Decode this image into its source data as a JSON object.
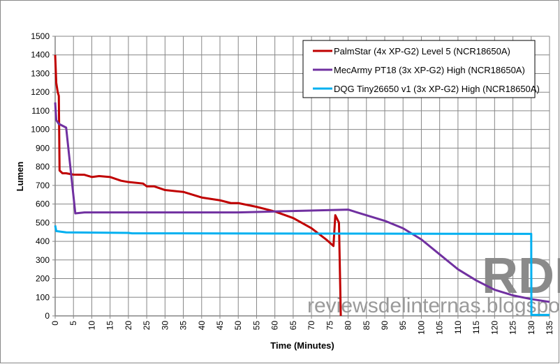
{
  "chart_data": {
    "type": "line",
    "title": "",
    "xlabel": "Time (Minutes)",
    "ylabel": "Lumen",
    "xlim": [
      0,
      135
    ],
    "ylim": [
      0,
      1500
    ],
    "xticks": [
      0,
      5,
      10,
      15,
      20,
      25,
      30,
      35,
      40,
      45,
      50,
      55,
      60,
      65,
      70,
      75,
      80,
      85,
      90,
      95,
      100,
      105,
      110,
      115,
      120,
      125,
      130,
      135
    ],
    "yticks": [
      0,
      100,
      200,
      300,
      400,
      500,
      600,
      700,
      800,
      900,
      1000,
      1100,
      1200,
      1300,
      1400,
      1500
    ],
    "grid": true,
    "legend_position": "top-right",
    "series": [
      {
        "name": "PalmStar (4x XP-G2) Level 5 (NCR18650A)",
        "color": "#c00000",
        "points": [
          [
            0,
            1400
          ],
          [
            0.3,
            1250
          ],
          [
            0.7,
            1200
          ],
          [
            1,
            1180
          ],
          [
            1.2,
            780
          ],
          [
            2,
            765
          ],
          [
            3,
            765
          ],
          [
            5,
            758
          ],
          [
            8,
            757
          ],
          [
            10,
            745
          ],
          [
            12,
            750
          ],
          [
            15,
            745
          ],
          [
            18,
            725
          ],
          [
            20,
            718
          ],
          [
            24,
            710
          ],
          [
            25,
            695
          ],
          [
            27,
            695
          ],
          [
            30,
            675
          ],
          [
            35,
            665
          ],
          [
            40,
            635
          ],
          [
            45,
            620
          ],
          [
            48,
            605
          ],
          [
            50,
            605
          ],
          [
            55,
            585
          ],
          [
            60,
            560
          ],
          [
            65,
            525
          ],
          [
            70,
            470
          ],
          [
            74,
            410
          ],
          [
            76,
            375
          ],
          [
            76.5,
            540
          ],
          [
            77.5,
            500
          ],
          [
            78,
            0
          ]
        ]
      },
      {
        "name": "MecArmy PT18 (3x XP-G2) High (NCR18650A)",
        "color": "#7030a0",
        "points": [
          [
            0,
            1145
          ],
          [
            0.3,
            1050
          ],
          [
            1,
            1030
          ],
          [
            3,
            1010
          ],
          [
            5.5,
            550
          ],
          [
            8,
            555
          ],
          [
            50,
            555
          ],
          [
            60,
            560
          ],
          [
            80,
            570
          ],
          [
            85,
            540
          ],
          [
            90,
            510
          ],
          [
            95,
            470
          ],
          [
            100,
            410
          ],
          [
            105,
            330
          ],
          [
            110,
            250
          ],
          [
            115,
            190
          ],
          [
            120,
            140
          ],
          [
            125,
            110
          ],
          [
            130,
            90
          ],
          [
            135,
            75
          ]
        ]
      },
      {
        "name": "DQG Tiny26650 v1 (3x XP-G2) High (NCR18650A)",
        "color": "#00b0f0",
        "points": [
          [
            0,
            485
          ],
          [
            0.3,
            455
          ],
          [
            3,
            448
          ],
          [
            20,
            445
          ],
          [
            21,
            443
          ],
          [
            130,
            440
          ],
          [
            130.05,
            5
          ],
          [
            135,
            5
          ]
        ]
      }
    ]
  },
  "watermark": {
    "text": "reviewsdelinternas.blogspot.com",
    "logo": "RDL"
  }
}
